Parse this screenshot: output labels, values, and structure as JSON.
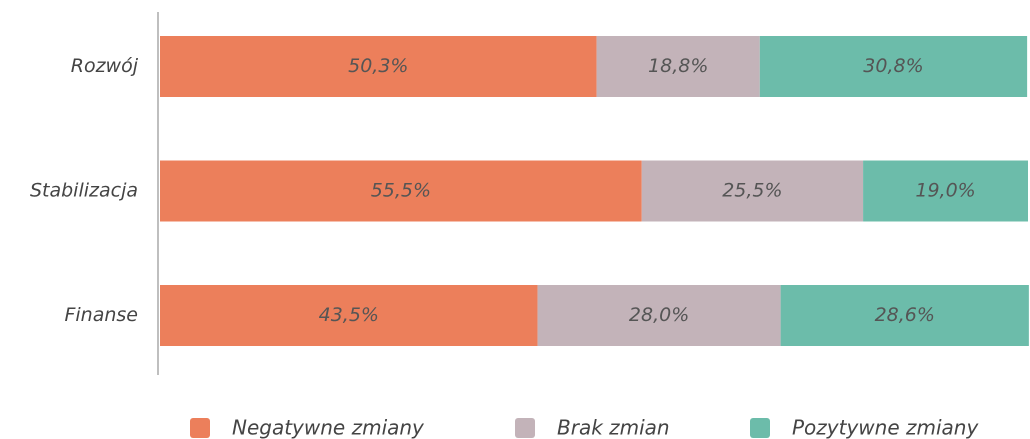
{
  "chart_data": {
    "type": "stacked_barh",
    "categories": [
      "Rozwój",
      "Stabilizacja",
      "Finanse"
    ],
    "xlim": [
      0,
      100
    ],
    "series": [
      {
        "name": "Negatywne zmiany",
        "color": "#ec7f5b",
        "values": [
          50.3,
          55.5,
          43.5
        ],
        "value_labels": [
          "50,3%",
          "55,5%",
          "43,5%"
        ]
      },
      {
        "name": "Brak zmian",
        "color": "#c3b3b9",
        "values": [
          18.8,
          25.5,
          28.0
        ],
        "value_labels": [
          "18,8%",
          "25,5%",
          "28,0%"
        ]
      },
      {
        "name": "Pozytywne zmiany",
        "color": "#6cbcaa",
        "values": [
          30.8,
          19.0,
          28.6
        ],
        "value_labels": [
          "30,8%",
          "19,0%",
          "28,6%"
        ]
      }
    ],
    "legend": "bottom"
  }
}
